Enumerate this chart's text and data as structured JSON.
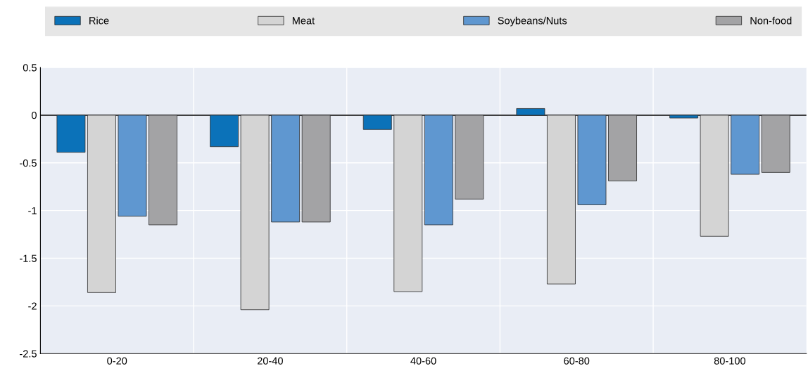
{
  "chart_data": {
    "type": "bar",
    "categories": [
      "0-20",
      "20-40",
      "40-60",
      "60-80",
      "80-100"
    ],
    "series": [
      {
        "name": "Rice",
        "color": "#0b72b9",
        "values": [
          -0.39,
          -0.33,
          -0.15,
          0.07,
          -0.03
        ]
      },
      {
        "name": "Meat",
        "color": "#d4d4d4",
        "values": [
          -1.86,
          -2.04,
          -1.85,
          -1.77,
          -1.27
        ]
      },
      {
        "name": "Soybeans/Nuts",
        "color": "#5f97d0",
        "values": [
          -1.06,
          -1.12,
          -1.15,
          -0.94,
          -0.62
        ]
      },
      {
        "name": "Non-food",
        "color": "#a3a3a5",
        "values": [
          -1.15,
          -1.12,
          -0.88,
          -0.69,
          -0.6
        ]
      }
    ],
    "ylim": [
      -2.5,
      0.5
    ],
    "yticks": [
      -2.5,
      -2,
      -1.5,
      -1,
      -0.5,
      0,
      0.5
    ],
    "grid": true,
    "legend": "top"
  }
}
